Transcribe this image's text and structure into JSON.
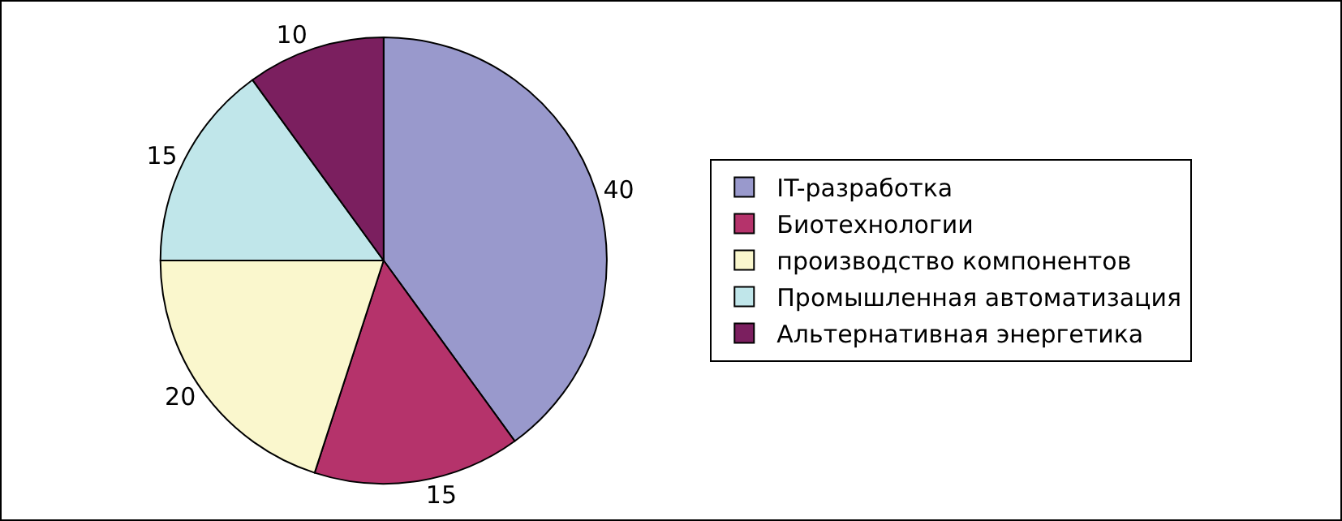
{
  "chart_data": {
    "type": "pie",
    "categories": [
      "IT-разработка",
      "Биотехнологии",
      "производство компонентов",
      "Промышленная автоматизация",
      "Альтернативная энергетика"
    ],
    "values": [
      40,
      15,
      20,
      15,
      10
    ],
    "colors": [
      "#9999cc",
      "#b5336b",
      "#faf7cd",
      "#c0e6ea",
      "#7b1f5f"
    ],
    "data_labels": true,
    "legend": "right"
  }
}
